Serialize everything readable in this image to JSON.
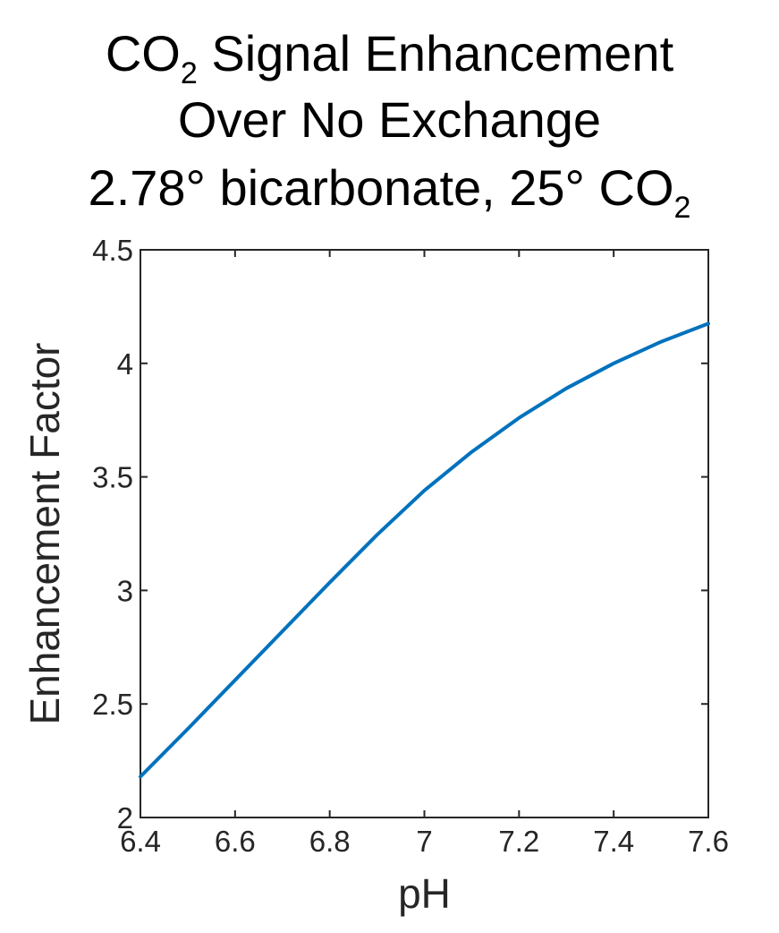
{
  "title": {
    "line1_pre": "CO",
    "line1_sub": "2",
    "line1_post": " Signal Enhancement",
    "line2": "Over No Exchange",
    "line3_pre": "2.78° bicarbonate, 25° CO",
    "line3_sub": "2"
  },
  "colors": {
    "series": "#0072BD",
    "axis": "#262626"
  },
  "chart_data": {
    "type": "line",
    "title": "CO2 Signal Enhancement Over No Exchange 2.78° bicarbonate, 25° CO2",
    "xlabel": "pH",
    "ylabel": "Enhancement Factor",
    "xlim": [
      6.4,
      7.6
    ],
    "ylim": [
      2,
      4.5
    ],
    "xticks": [
      "6.4",
      "6.6",
      "6.8",
      "7",
      "7.2",
      "7.4",
      "7.6"
    ],
    "yticks": [
      "2",
      "2.5",
      "3",
      "3.5",
      "4",
      "4.5"
    ],
    "grid": false,
    "series": [
      {
        "x": [
          6.4,
          6.5,
          6.6,
          6.7,
          6.8,
          6.9,
          7.0,
          7.1,
          7.2,
          7.3,
          7.4,
          7.5,
          7.6
        ],
        "y": [
          2.18,
          2.39,
          2.605,
          2.82,
          3.035,
          3.245,
          3.44,
          3.61,
          3.76,
          3.89,
          4.0,
          4.095,
          4.175
        ]
      }
    ]
  }
}
